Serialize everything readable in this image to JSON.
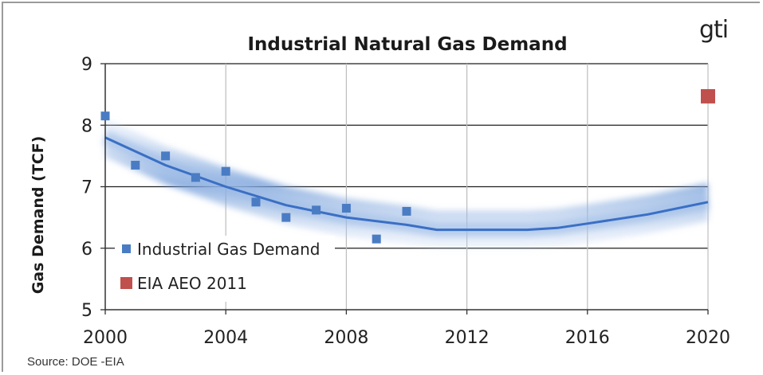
{
  "chart_data": {
    "type": "scatter",
    "title": "Industrial Natural Gas Demand",
    "xlabel": "",
    "ylabel": "Gas Demand (TCF)",
    "xlim": [
      2000,
      2020
    ],
    "ylim": [
      5,
      9
    ],
    "x_ticks": [
      "2000",
      "2004",
      "2008",
      "2012",
      "2016",
      "2020"
    ],
    "y_ticks": [
      "5",
      "6",
      "7",
      "8",
      "9"
    ],
    "grid": true,
    "legend_position": "bottom-left",
    "series": [
      {
        "name": "Industrial Gas Demand",
        "color": "#4a7cc4",
        "marker": "square",
        "x": [
          2000,
          2001,
          2002,
          2003,
          2004,
          2005,
          2006,
          2007,
          2008,
          2009,
          2010
        ],
        "y": [
          8.15,
          7.35,
          7.5,
          7.15,
          7.25,
          6.75,
          6.5,
          6.62,
          6.65,
          6.15,
          6.6
        ]
      },
      {
        "name": "EIA AEO 2011",
        "color": "#c0504d",
        "marker": "square",
        "x": [
          2020
        ],
        "y": [
          8.47
        ]
      }
    ],
    "trend": {
      "color": "#3a6fc4",
      "x": [
        2000,
        2002,
        2004,
        2006,
        2008,
        2010,
        2011,
        2012,
        2013,
        2014,
        2015,
        2016,
        2018,
        2020
      ],
      "y": [
        7.8,
        7.35,
        7.0,
        6.7,
        6.5,
        6.38,
        6.3,
        6.3,
        6.3,
        6.3,
        6.33,
        6.4,
        6.55,
        6.75
      ]
    }
  },
  "logo_text": "gti",
  "source": "Source: DOE -EIA"
}
